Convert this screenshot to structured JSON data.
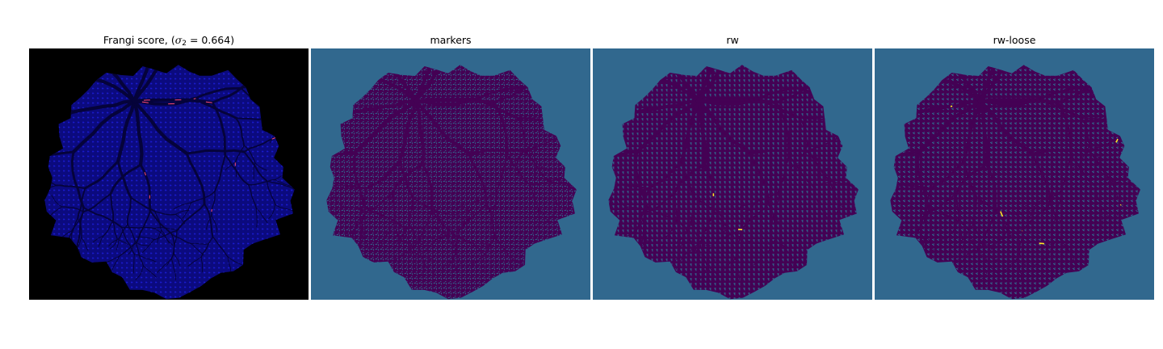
{
  "figure": {
    "panels": [
      {
        "id": "frangi",
        "title_prefix": "Frangi score, (",
        "title_symbol": "σ",
        "title_subscript": "2",
        "title_suffix": " = 0.664)",
        "colormap": "gnuplot2",
        "colors": {
          "background": "#000000",
          "fill": "#0b0a7e",
          "mesh": "#1a1bd0",
          "vessel_dark": "#05033a",
          "highlight_1": "#ff4a7a",
          "highlight_2": "#ffff66"
        }
      },
      {
        "id": "markers",
        "title": "markers",
        "colormap": "viridis",
        "colors": {
          "background": "#31688e",
          "fill": "#440154",
          "mesh": "#31688e",
          "vessel_dark": "#440154"
        }
      },
      {
        "id": "rw",
        "title": "rw",
        "colormap": "viridis",
        "colors": {
          "background": "#31688e",
          "fill": "#440154",
          "mesh": "#31688e",
          "vessel_dark": "#440154",
          "highlight_1": "#fde725"
        }
      },
      {
        "id": "rw-loose",
        "title": "rw-loose",
        "colormap": "viridis",
        "colors": {
          "background": "#31688e",
          "fill": "#440154",
          "mesh": "#31688e",
          "vessel_dark": "#440154",
          "highlight_1": "#fde725"
        }
      }
    ]
  }
}
